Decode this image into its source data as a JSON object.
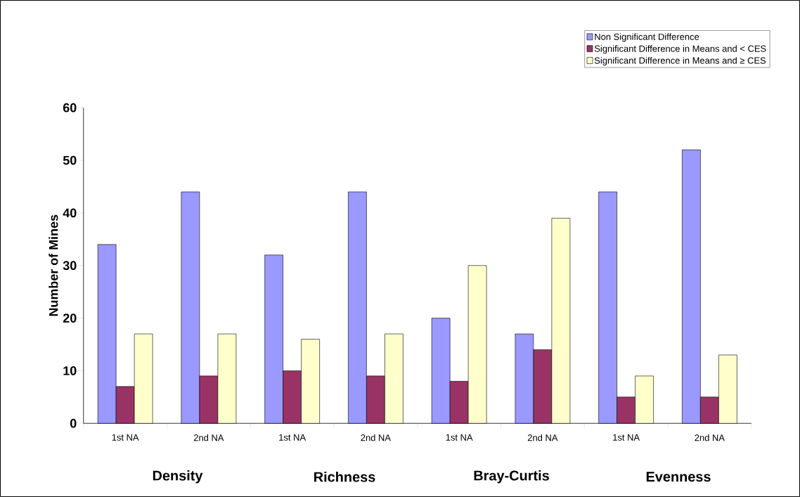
{
  "chart_data": {
    "type": "bar",
    "ylabel": "Number of Mines",
    "categories": [
      "1st NA",
      "2nd NA",
      "1st NA",
      "2nd NA",
      "1st NA",
      "2nd NA",
      "1st NA",
      "2nd NA"
    ],
    "series": [
      {
        "name": "Non Significant Difference",
        "color": "#9999ff",
        "values": [
          34,
          44,
          32,
          44,
          20,
          17,
          44,
          52
        ]
      },
      {
        "name": "Significant Difference in Means and < CES",
        "color": "#993366",
        "values": [
          7,
          9,
          10,
          9,
          8,
          14,
          5,
          5
        ]
      },
      {
        "name": "Significant Difference in Means and ≥ CES",
        "color": "#ffffcc",
        "values": [
          17,
          17,
          16,
          17,
          30,
          39,
          9,
          13
        ]
      }
    ],
    "ylim": [
      0,
      60
    ],
    "yticks": [
      0,
      10,
      20,
      30,
      40,
      50,
      60
    ],
    "grid": false,
    "legend": "top right",
    "annotations": [
      "Density",
      "Richness",
      "Bray-Curtis",
      "Evenness"
    ]
  }
}
